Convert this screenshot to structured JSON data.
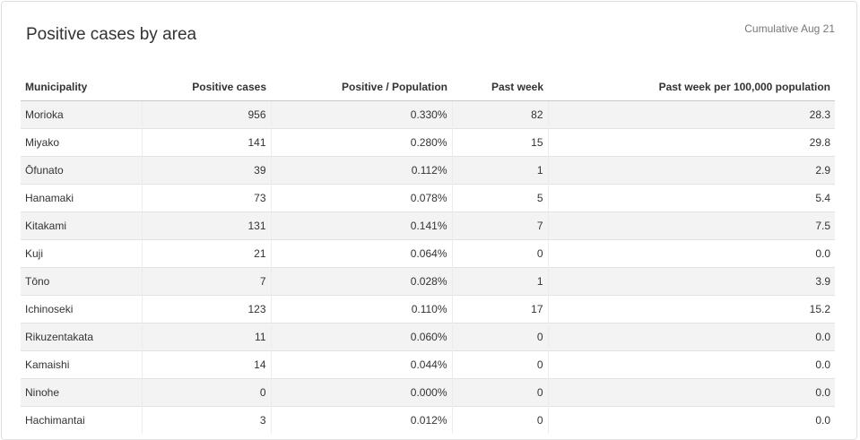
{
  "header": {
    "title": "Positive cases by area",
    "subtitle": "Cumulative Aug 21"
  },
  "table": {
    "columns": [
      "Municipality",
      "Positive cases",
      "Positive / Population",
      "Past week",
      "Past week per 100,000 population"
    ],
    "rows": [
      [
        "Morioka",
        "956",
        "0.330%",
        "82",
        "28.3"
      ],
      [
        "Miyako",
        "141",
        "0.280%",
        "15",
        "29.8"
      ],
      [
        "Ōfunato",
        "39",
        "0.112%",
        "1",
        "2.9"
      ],
      [
        "Hanamaki",
        "73",
        "0.078%",
        "5",
        "5.4"
      ],
      [
        "Kitakami",
        "131",
        "0.141%",
        "7",
        "7.5"
      ],
      [
        "Kuji",
        "21",
        "0.064%",
        "0",
        "0.0"
      ],
      [
        "Tōno",
        "7",
        "0.028%",
        "1",
        "3.9"
      ],
      [
        "Ichinoseki",
        "123",
        "0.110%",
        "17",
        "15.2"
      ],
      [
        "Rikuzentakata",
        "11",
        "0.060%",
        "0",
        "0.0"
      ],
      [
        "Kamaishi",
        "14",
        "0.044%",
        "0",
        "0.0"
      ],
      [
        "Ninohe",
        "0",
        "0.000%",
        "0",
        "0.0"
      ],
      [
        "Hachimantai",
        "3",
        "0.012%",
        "0",
        "0.0"
      ]
    ]
  }
}
